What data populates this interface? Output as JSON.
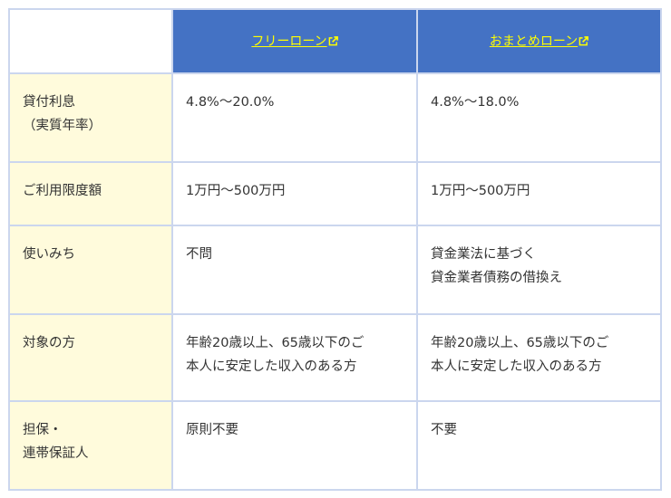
{
  "header": {
    "columns": [
      {
        "label": "フリーローン",
        "icon": "external-link-icon"
      },
      {
        "label": "おまとめローン",
        "icon": "external-link-icon"
      }
    ]
  },
  "rows": [
    {
      "label": [
        "貸付利息",
        "（実質年率）"
      ],
      "free": [
        "4.8%〜20.0%"
      ],
      "omatome": [
        "4.8%〜18.0%"
      ]
    },
    {
      "label": [
        "ご利用限度額"
      ],
      "free": [
        "1万円〜500万円"
      ],
      "omatome": [
        "1万円〜500万円"
      ]
    },
    {
      "label": [
        "使いみち"
      ],
      "free": [
        "不問"
      ],
      "omatome": [
        "貸金業法に基づく",
        "貸金業者債務の借換え"
      ]
    },
    {
      "label": [
        "対象の方"
      ],
      "free": [
        "年齢20歳以上、65歳以下のご",
        "本人に安定した収入のある方"
      ],
      "omatome": [
        "年齢20歳以上、65歳以下のご",
        "本人に安定した収入のある方"
      ]
    },
    {
      "label": [
        "担保・",
        "連帯保証人"
      ],
      "free": [
        "原則不要"
      ],
      "omatome": [
        "不要"
      ]
    }
  ],
  "colors": {
    "header_bg": "#4472c4",
    "link": "#ffff00",
    "label_bg": "#fffbdc",
    "border": "#cbd6ee"
  }
}
